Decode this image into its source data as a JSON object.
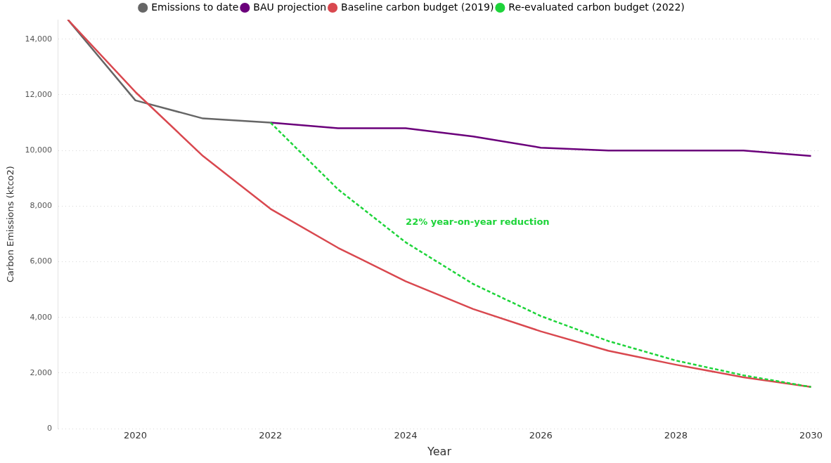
{
  "chart_data": {
    "type": "line",
    "xlabel": "Year",
    "ylabel": "Carbon Emissions (ktco2)",
    "xlim": [
      2018.85,
      2030.15
    ],
    "ylim": [
      0,
      14700
    ],
    "xticks": [
      2020,
      2022,
      2024,
      2026,
      2028,
      2030
    ],
    "yticks": [
      0,
      {
        "value": 2000,
        "label": "2,000"
      },
      {
        "value": 4000,
        "label": "4,000"
      },
      {
        "value": 6000,
        "label": "6,000"
      },
      {
        "value": 8000,
        "label": "8,000"
      },
      {
        "value": 10000,
        "label": "10,000"
      },
      {
        "value": 12000,
        "label": "12,000"
      },
      {
        "value": 14000,
        "label": "14,000"
      }
    ],
    "grid": "y",
    "legend": "top",
    "marker": "none",
    "series": [
      {
        "name": "Emissions to date",
        "color": "#666666",
        "x": [
          2019,
          2020,
          2021,
          2022
        ],
        "values": [
          14700,
          11800,
          11150,
          11000
        ]
      },
      {
        "name": "BAU projection",
        "color": "#6b007b",
        "x": [
          2022,
          2023,
          2024,
          2025,
          2026,
          2027,
          2028,
          2029,
          2030
        ],
        "values": [
          11000,
          10800,
          10800,
          10500,
          10100,
          10000,
          10000,
          10000,
          9800
        ]
      },
      {
        "name": "Baseline carbon budget (2019)",
        "color": "#d9484f",
        "x": [
          2019,
          2020,
          2021,
          2022,
          2023,
          2024,
          2025,
          2026,
          2027,
          2028,
          2029,
          2030
        ],
        "values": [
          14700,
          12100,
          9800,
          7900,
          6500,
          5300,
          4300,
          3500,
          2800,
          2300,
          1850,
          1500
        ]
      },
      {
        "name": "Re-evaluated carbon budget (2022)",
        "color": "#1ed43a",
        "line_style": "dashed",
        "x": [
          2022,
          2023,
          2024,
          2025,
          2026,
          2027,
          2028,
          2029,
          2030
        ],
        "values": [
          11000,
          8600,
          6700,
          5200,
          4050,
          3150,
          2450,
          1920,
          1500
        ]
      }
    ],
    "annotations": [
      "22% year-on-year reduction"
    ]
  }
}
